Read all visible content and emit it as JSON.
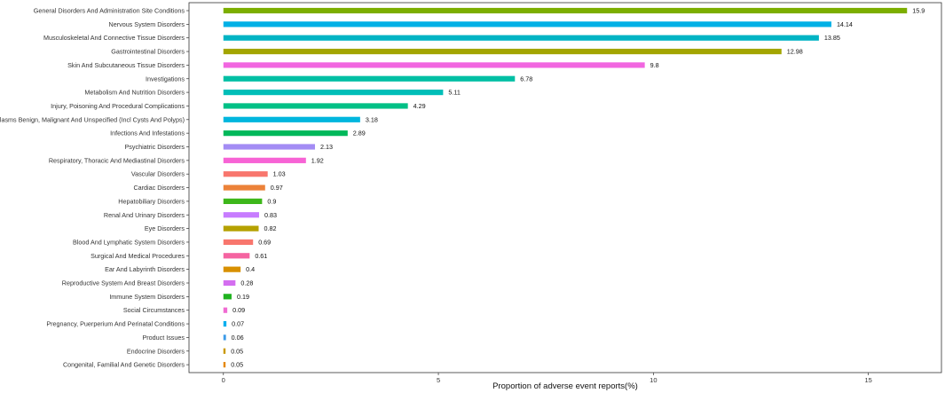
{
  "chart_data": {
    "type": "bar",
    "orientation": "horizontal",
    "title": "",
    "xlabel": "Proportion of adverse event reports(%)",
    "ylabel": "",
    "xlim": [
      -0.8,
      16.7
    ],
    "xticks": [
      0,
      5,
      10,
      15
    ],
    "grid": false,
    "legend": "none",
    "bars": [
      {
        "category": "General Disorders And Administration Site Conditions",
        "value": 15.9,
        "color": "#7CAE00"
      },
      {
        "category": "Nervous System Disorders",
        "value": 14.14,
        "color": "#00B0E6"
      },
      {
        "category": "Musculoskeletal And Connective Tissue Disorders",
        "value": 13.85,
        "color": "#00B4C4"
      },
      {
        "category": "Gastrointestinal Disorders",
        "value": 12.98,
        "color": "#A3A500"
      },
      {
        "category": "Skin And Subcutaneous Tissue Disorders",
        "value": 9.8,
        "color": "#F166E0"
      },
      {
        "category": "Investigations",
        "value": 6.78,
        "color": "#00BFA4"
      },
      {
        "category": "Metabolism And Nutrition Disorders",
        "value": 5.11,
        "color": "#00BEB8"
      },
      {
        "category": "Injury, Poisoning And Procedural Complications",
        "value": 4.29,
        "color": "#00C086"
      },
      {
        "category": "Neoplasms Benign, Malignant And Unspecified (Incl Cysts And Polyps)",
        "value": 3.18,
        "color": "#00B6DE"
      },
      {
        "category": "Infections And Infestations",
        "value": 2.89,
        "color": "#00B85A"
      },
      {
        "category": "Psychiatric Disorders",
        "value": 2.13,
        "color": "#A38CF4"
      },
      {
        "category": "Respiratory, Thoracic And Mediastinal Disorders",
        "value": 1.92,
        "color": "#F763D5"
      },
      {
        "category": "Vascular Disorders",
        "value": 1.03,
        "color": "#F8766D"
      },
      {
        "category": "Cardiac Disorders",
        "value": 0.97,
        "color": "#EC8239"
      },
      {
        "category": "Hepatobiliary Disorders",
        "value": 0.9,
        "color": "#3DB71A"
      },
      {
        "category": "Renal And Urinary Disorders",
        "value": 0.83,
        "color": "#C77CFF"
      },
      {
        "category": "Eye Disorders",
        "value": 0.82,
        "color": "#B5A100"
      },
      {
        "category": "Blood And Lymphatic System Disorders",
        "value": 0.69,
        "color": "#F8766D"
      },
      {
        "category": "Surgical And Medical Procedures",
        "value": 0.61,
        "color": "#F564A1"
      },
      {
        "category": "Ear And Labyrinth Disorders",
        "value": 0.4,
        "color": "#D89000"
      },
      {
        "category": "Reproductive System And Breast Disorders",
        "value": 0.28,
        "color": "#D46EF0"
      },
      {
        "category": "Immune System Disorders",
        "value": 0.19,
        "color": "#1FB21F"
      },
      {
        "category": "Social Circumstances",
        "value": 0.09,
        "color": "#F06BD2"
      },
      {
        "category": "Pregnancy, Puerperium And Perinatal Conditions",
        "value": 0.07,
        "color": "#00AEEF"
      },
      {
        "category": "Product Issues",
        "value": 0.06,
        "color": "#3D9BE8"
      },
      {
        "category": "Endocrine Disorders",
        "value": 0.05,
        "color": "#C99800"
      },
      {
        "category": "Congenital, Familial And Genetic Disorders",
        "value": 0.05,
        "color": "#E58700"
      }
    ]
  }
}
